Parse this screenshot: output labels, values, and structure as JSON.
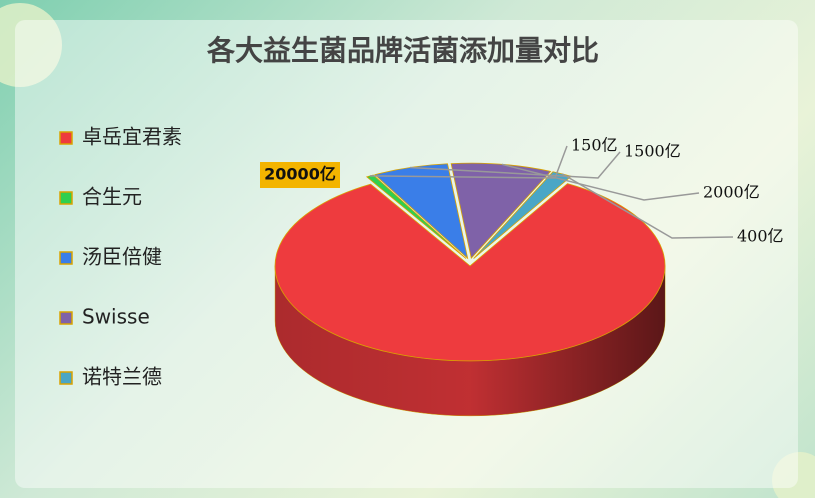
{
  "chart_data": {
    "type": "pie",
    "title": "各大益生菌品牌活菌添加量对比",
    "categories": [
      "卓岳宜君素",
      "合生元",
      "汤臣倍健",
      "Swisse",
      "诺特兰德"
    ],
    "values": [
      20000,
      150,
      1500,
      2000,
      400
    ],
    "value_labels": [
      "20000亿",
      "150亿",
      "1500亿",
      "2000亿",
      "400亿"
    ],
    "colors": [
      "#ee3b3e",
      "#2fcf4f",
      "#3a7ee8",
      "#7f62a8",
      "#4aa6c6"
    ],
    "legend": "left"
  }
}
